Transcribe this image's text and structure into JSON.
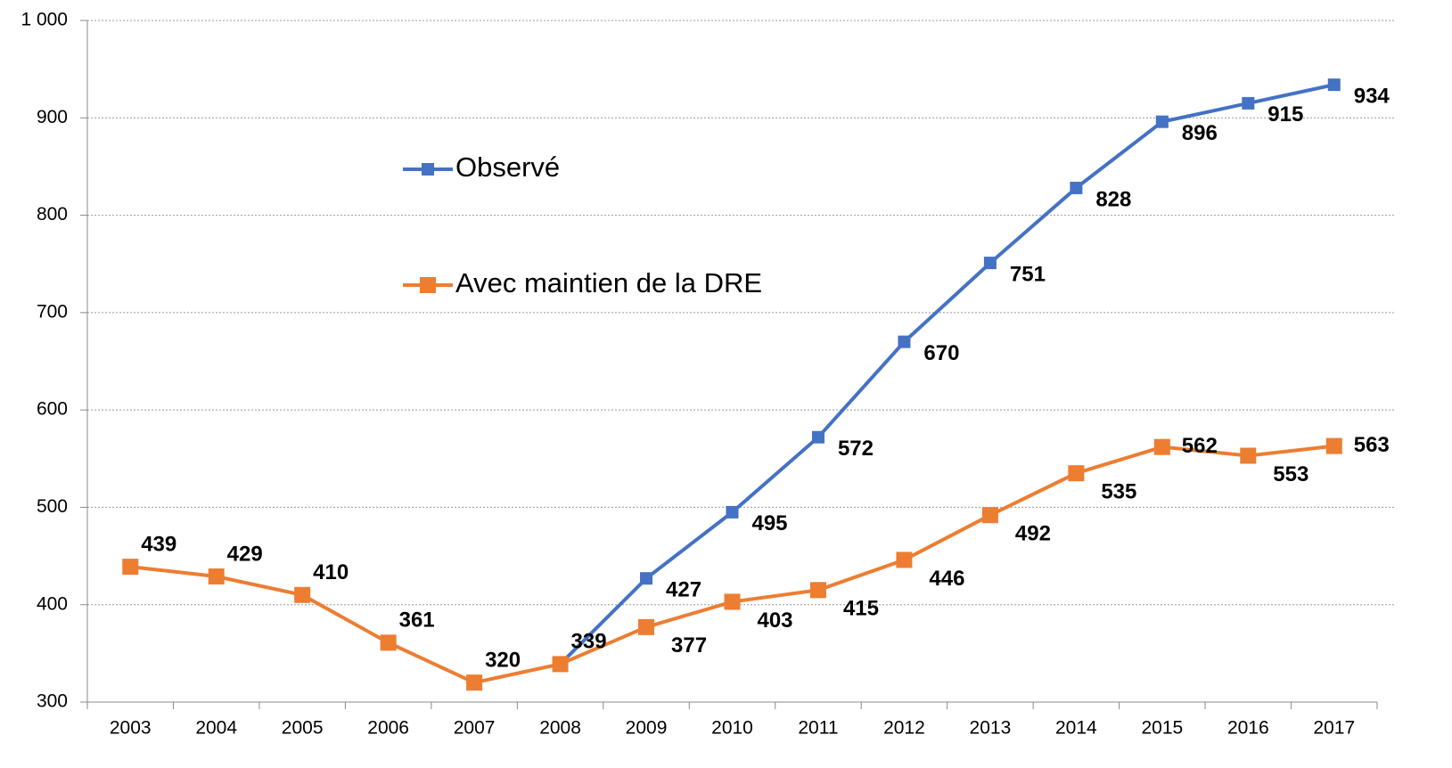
{
  "chart_data": {
    "type": "line",
    "categories": [
      "2003",
      "2004",
      "2005",
      "2006",
      "2007",
      "2008",
      "2009",
      "2010",
      "2011",
      "2012",
      "2013",
      "2014",
      "2015",
      "2016",
      "2017"
    ],
    "series": [
      {
        "name": "Observé",
        "color": "#4472c4",
        "values": [
          null,
          null,
          null,
          null,
          null,
          339,
          427,
          495,
          572,
          670,
          751,
          828,
          896,
          915,
          934
        ]
      },
      {
        "name": "Avec maintien de la DRE",
        "color": "#ed7d31",
        "values": [
          439,
          429,
          410,
          361,
          320,
          339,
          377,
          403,
          415,
          446,
          492,
          535,
          562,
          553,
          563
        ]
      }
    ],
    "ylim": [
      300,
      1000
    ],
    "yticks": [
      300,
      400,
      500,
      600,
      700,
      800,
      900,
      {
        "value": 1000,
        "label": "1 000"
      }
    ],
    "grid": true
  }
}
